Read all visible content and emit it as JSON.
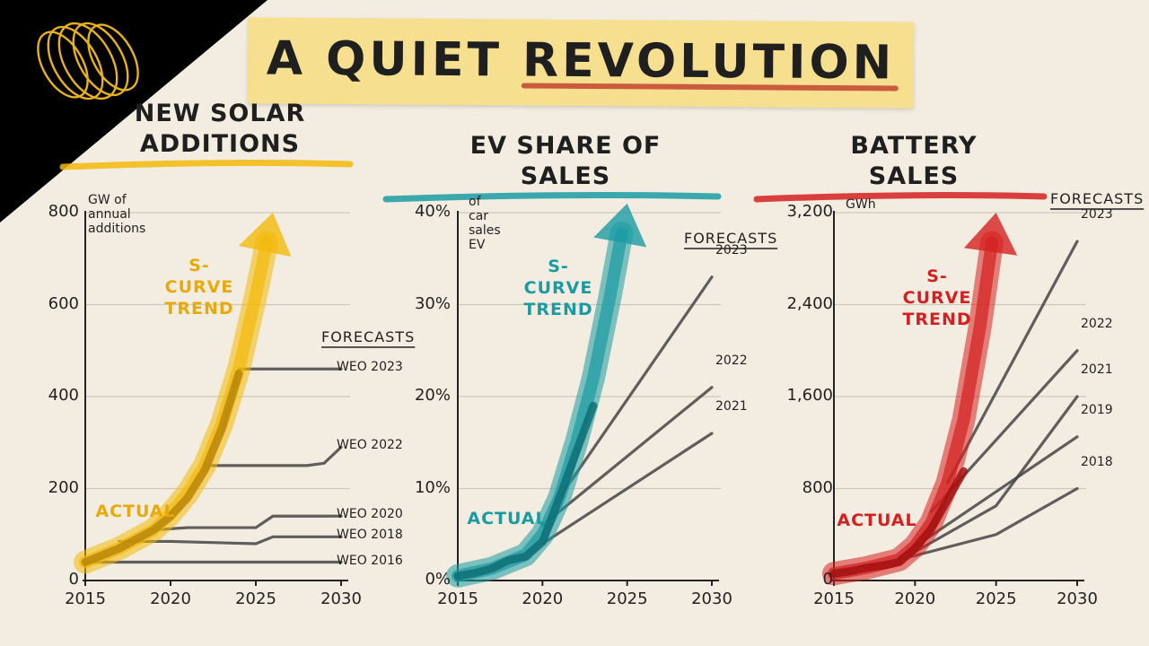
{
  "page_title": "A QUIET REVOLUTION",
  "colors": {
    "solar": "#f2b90a",
    "ev": "#1a9ba3",
    "battery": "#d42020",
    "forecast": "#444444",
    "background": "#f3ede1",
    "note": "#f6df8f"
  },
  "chart_data": [
    {
      "type": "line",
      "title": "NEW SOLAR ADDITIONS",
      "ylabel": "GW of annual additions",
      "xlim": [
        2015,
        2030
      ],
      "ylim": [
        0,
        800
      ],
      "x_ticks": [
        "2015",
        "2020",
        "2025",
        "2030"
      ],
      "y_ticks": [
        "0",
        "200",
        "400",
        "600",
        "800"
      ],
      "trend_label": "S-CURVE TREND",
      "actual_label": "ACTUAL",
      "forecasts_header": "FORECASTS",
      "actual": {
        "x": [
          2015,
          2016,
          2017,
          2018,
          2019,
          2020,
          2021,
          2022,
          2023,
          2024
        ],
        "y": [
          40,
          55,
          70,
          90,
          110,
          140,
          180,
          240,
          330,
          450
        ]
      },
      "trend": {
        "x": [
          2015,
          2017,
          2019,
          2020,
          2021,
          2022,
          2023,
          2024,
          2025,
          2026
        ],
        "y": [
          40,
          70,
          110,
          145,
          190,
          250,
          340,
          460,
          620,
          800
        ]
      },
      "forecasts": [
        {
          "name": "WEO 2023",
          "x": [
            2023,
            2024,
            2030
          ],
          "y": [
            320,
            460,
            460
          ]
        },
        {
          "name": "WEO 2022",
          "x": [
            2022,
            2028,
            2029,
            2030
          ],
          "y": [
            250,
            250,
            255,
            290
          ]
        },
        {
          "name": "WEO 2020",
          "x": [
            2019,
            2021,
            2025,
            2026,
            2030
          ],
          "y": [
            110,
            115,
            115,
            140,
            140
          ]
        },
        {
          "name": "WEO 2018",
          "x": [
            2017,
            2020,
            2025,
            2026,
            2030
          ],
          "y": [
            85,
            85,
            80,
            95,
            95
          ]
        },
        {
          "name": "WEO 2016",
          "x": [
            2015,
            2020,
            2025,
            2030
          ],
          "y": [
            40,
            40,
            40,
            40
          ]
        }
      ]
    },
    {
      "type": "line",
      "title": "EV SHARE OF SALES",
      "ylabel": "of car sales EV",
      "xlim": [
        2015,
        2030
      ],
      "ylim": [
        0,
        40
      ],
      "x_ticks": [
        "2015",
        "2020",
        "2025",
        "2030"
      ],
      "y_ticks": [
        "0%",
        "10%",
        "20%",
        "30%",
        "40%"
      ],
      "trend_label": "S-CURVE TREND",
      "actual_label": "ACTUAL",
      "forecasts_header": "FORECASTS",
      "actual": {
        "x": [
          2015,
          2016,
          2017,
          2018,
          2019,
          2020,
          2021,
          2022,
          2023
        ],
        "y": [
          0.5,
          0.8,
          1.3,
          2.2,
          2.6,
          4.2,
          9,
          14,
          19
        ]
      },
      "trend": {
        "x": [
          2015,
          2017,
          2019,
          2020,
          2021,
          2022,
          2023,
          2024,
          2025
        ],
        "y": [
          0.5,
          1.3,
          2.8,
          5,
          9,
          15,
          22,
          31,
          41
        ]
      },
      "forecasts": [
        {
          "name": "2023",
          "x": [
            2021,
            2030
          ],
          "y": [
            9,
            33
          ]
        },
        {
          "name": "2022",
          "x": [
            2020,
            2030
          ],
          "y": [
            6,
            21
          ]
        },
        {
          "name": "2021",
          "x": [
            2020,
            2030
          ],
          "y": [
            4,
            16
          ]
        }
      ]
    },
    {
      "type": "line",
      "title": "BATTERY SALES",
      "ylabel": "GWh",
      "xlim": [
        2015,
        2030
      ],
      "ylim": [
        0,
        3200
      ],
      "x_ticks": [
        "2015",
        "2020",
        "2025",
        "2030"
      ],
      "y_ticks": [
        "0",
        "800",
        "1,600",
        "2,400",
        "3,200"
      ],
      "trend_label": "S-CURVE TREND",
      "actual_label": "ACTUAL",
      "forecasts_header": "FORECASTS",
      "actual": {
        "x": [
          2015,
          2016,
          2017,
          2018,
          2019,
          2020,
          2021,
          2022,
          2023
        ],
        "y": [
          60,
          80,
          110,
          130,
          160,
          280,
          450,
          700,
          950
        ]
      },
      "trend": {
        "x": [
          2015,
          2017,
          2019,
          2020,
          2021,
          2022,
          2023,
          2024,
          2025
        ],
        "y": [
          60,
          110,
          180,
          300,
          500,
          850,
          1400,
          2200,
          3200
        ]
      },
      "forecasts": [
        {
          "name": "2023",
          "x": [
            2022,
            2030
          ],
          "y": [
            850,
            2950
          ]
        },
        {
          "name": "2022",
          "x": [
            2021,
            2030
          ],
          "y": [
            600,
            2000
          ]
        },
        {
          "name": "2021",
          "x": [
            2020,
            2025,
            2030
          ],
          "y": [
            250,
            650,
            1600
          ]
        },
        {
          "name": "2019",
          "x": [
            2019,
            2030
          ],
          "y": [
            200,
            1250
          ]
        },
        {
          "name": "2018",
          "x": [
            2019,
            2025,
            2030
          ],
          "y": [
            180,
            400,
            800
          ]
        }
      ]
    }
  ]
}
